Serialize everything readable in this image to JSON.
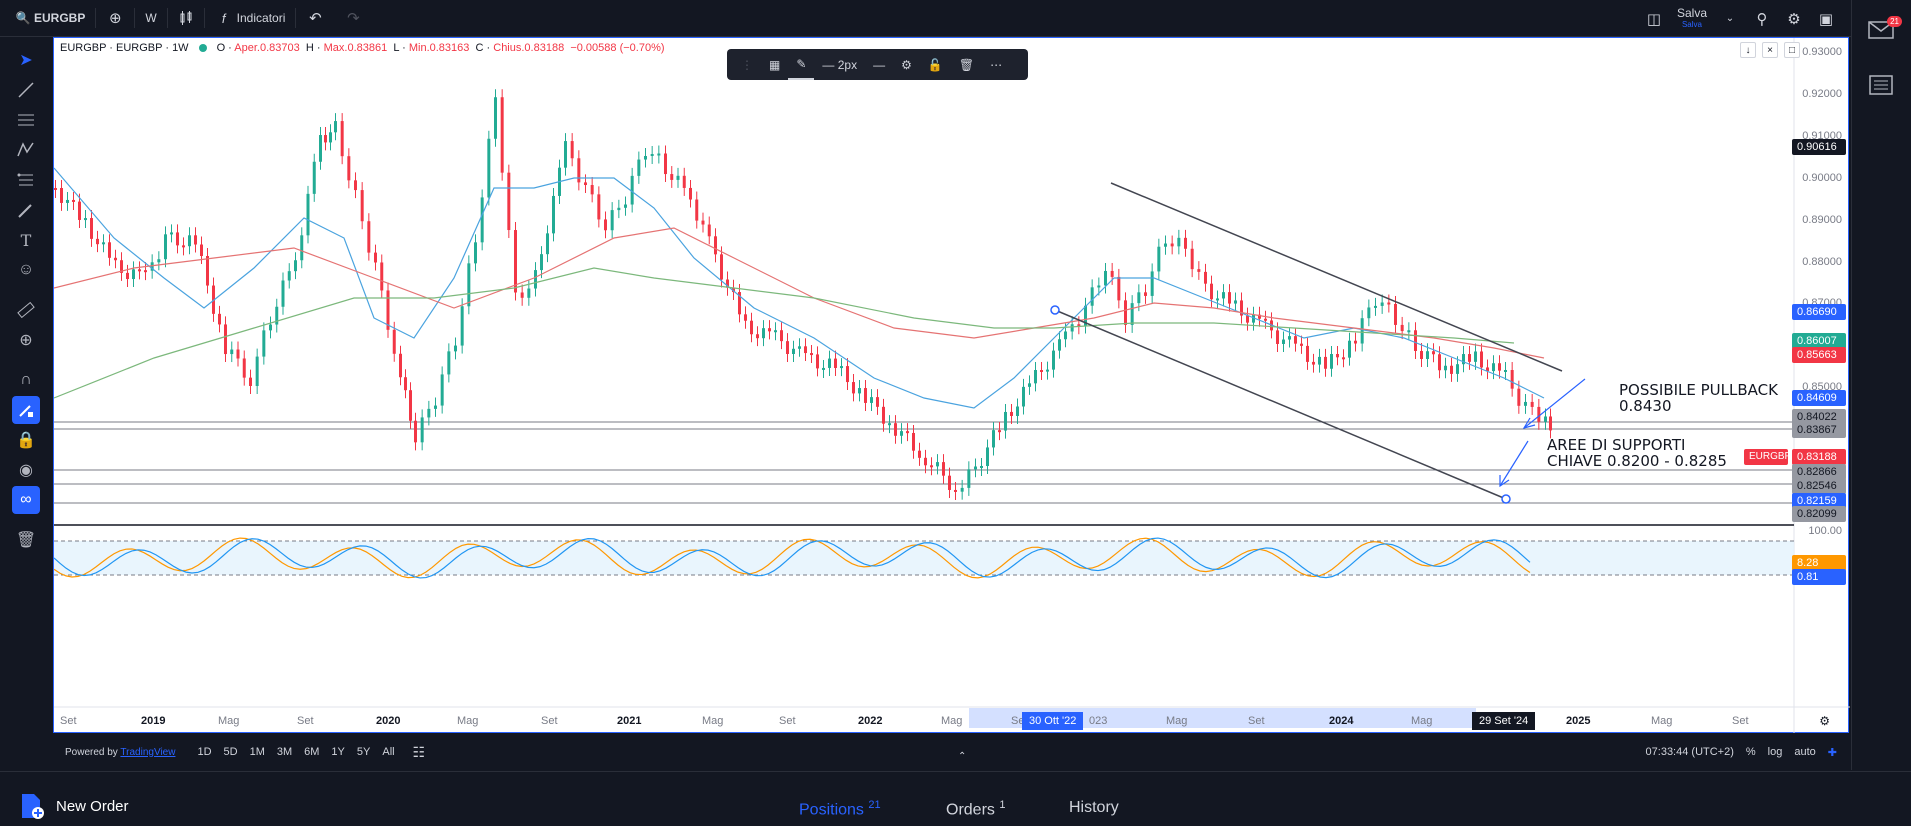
{
  "topbar": {
    "symbol": "EURGBP",
    "interval": "W",
    "indicators_label": "Indicatori",
    "save_label": "Salva",
    "save_sub": "Salva"
  },
  "legend": {
    "title": "EURGBP · EURGBP · 1W",
    "open_label": "O",
    "open": "Aper.0.83703",
    "high_label": "H",
    "high": "Max.0.83861",
    "low_label": "L",
    "low": "Min.0.83163",
    "close_label": "C",
    "close": "Chius.0.83188",
    "change": "−0.00588 (−0.70%)"
  },
  "float_toolbar": {
    "width_label": "2px"
  },
  "price_scale": {
    "ticks": [
      "0.93000",
      "0.92000",
      "0.91000",
      "0.90000",
      "0.89000",
      "0.88000",
      "0.87000",
      "0.85000"
    ],
    "labels": [
      {
        "value": "0.90616",
        "bg": "#131722",
        "fg": "#ffffff",
        "name": "crosshair-price-label"
      },
      {
        "value": "0.86690",
        "bg": "#2962ff",
        "fg": "#ffffff",
        "name": "line-price-label"
      },
      {
        "value": "0.86007",
        "bg": "#22ab94",
        "fg": "#ffffff",
        "name": "ma-green-price-label"
      },
      {
        "value": "0.85663",
        "bg": "#f23645",
        "fg": "#ffffff",
        "name": "ma-red-price-label"
      },
      {
        "value": "0.84609",
        "bg": "#2962ff",
        "fg": "#ffffff",
        "name": "ma-blue-price-label"
      },
      {
        "value": "0.84022",
        "bg": "#9598a1",
        "fg": "#131722",
        "name": "level-price-label"
      },
      {
        "value": "0.83867",
        "bg": "#9598a1",
        "fg": "#131722",
        "name": "level-price-label"
      },
      {
        "value": "0.83188",
        "bg": "#f23645",
        "fg": "#ffffff",
        "name": "current-price-label"
      },
      {
        "value": "0.82866",
        "bg": "#9598a1",
        "fg": "#131722",
        "name": "level-price-label"
      },
      {
        "value": "0.82546",
        "bg": "#9598a1",
        "fg": "#131722",
        "name": "level-price-label"
      },
      {
        "value": "0.82159",
        "bg": "#2962ff",
        "fg": "#ffffff",
        "name": "line-price-label"
      },
      {
        "value": "0.82099",
        "bg": "#9598a1",
        "fg": "#131722",
        "name": "level-price-label"
      }
    ],
    "symbol_tag": "EURGBP",
    "osc_top": "100.00",
    "osc_k": "8.28",
    "osc_d": "0.81"
  },
  "annotations": {
    "pullback_line1": "POSSIBILE PULLBACK",
    "pullback_line2": "0.8430",
    "support_line1": "AREE DI SUPPORTI",
    "support_line2": "CHIAVE  0.8200 - 0.8285"
  },
  "time_axis": {
    "labels": [
      "Set",
      "2019",
      "Mag",
      "Set",
      "2020",
      "Mag",
      "Set",
      "2021",
      "Mag",
      "Set",
      "2022",
      "Mag",
      "Se",
      "023",
      "Mag",
      "Set",
      "2024",
      "Mag",
      "2025",
      "Mag",
      "Set"
    ],
    "badge_left": "30 Ott '22",
    "badge_right": "29 Set '24"
  },
  "rangebar": {
    "powered_prefix": "Powered by",
    "powered_link": "TradingView",
    "ranges": [
      "1D",
      "5D",
      "1M",
      "3M",
      "6M",
      "1Y",
      "5Y",
      "All"
    ],
    "clock": "07:33:44 (UTC+2)",
    "percent": "%",
    "log": "log",
    "auto": "auto"
  },
  "tradebar": {
    "new_order": "New Order",
    "positions": "Positions",
    "positions_count": "21",
    "orders": "Orders",
    "orders_count": "1",
    "history": "History"
  },
  "rightpanel": {
    "mail_badge": "21"
  },
  "colors": {
    "accent": "#2962ff",
    "up": "#22ab94",
    "down": "#f23645",
    "ma_blue": "#4aa3df",
    "ma_red": "#e57373",
    "ma_green": "#7cb87c"
  }
}
